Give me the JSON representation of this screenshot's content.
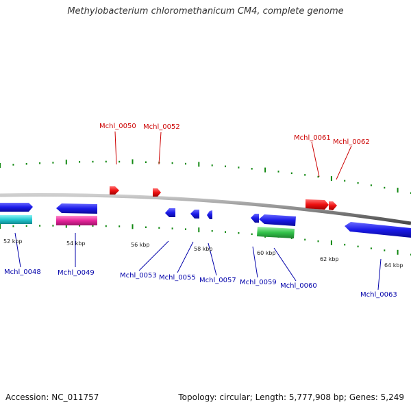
{
  "title": "Methylobacterium chloromethanicum CM4, complete genome",
  "footer": {
    "accession": "Accession: NC_011757",
    "summary": "Topology: circular; Length: 5,777,908 bp; Genes: 5,249"
  },
  "colors": {
    "forward": "#ee1111",
    "reverse": "#1111ee",
    "label_forward": "#cc0000",
    "label_reverse": "#0000aa",
    "backbone": "#8a8a8a",
    "ticks": "#118811",
    "cyan": "#22c8d0",
    "magenta": "#e6259a",
    "green": "#33c24a"
  },
  "ruler": [
    "52 kbp",
    "54 kbp",
    "56 kbp",
    "58 kbp",
    "60 kbp",
    "62 kbp",
    "64 kbp"
  ],
  "genes_forward": [
    "Mchl_0050",
    "Mchl_0052",
    "Mchl_0061",
    "Mchl_0062"
  ],
  "genes_reverse": [
    "Mchl_0048",
    "Mchl_0049",
    "Mchl_0053",
    "Mchl_0055",
    "Mchl_0057",
    "Mchl_0059",
    "Mchl_0060",
    "Mchl_0063"
  ]
}
